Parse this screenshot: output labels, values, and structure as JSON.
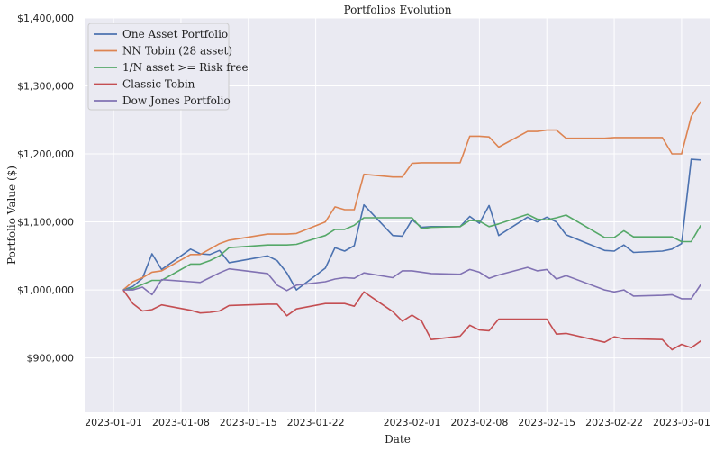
{
  "chart_data": {
    "type": "line",
    "title": "Portfolios Evolution",
    "xlabel": "Date",
    "ylabel": "Portfolio Value ($)",
    "ylim": [
      820000,
      1400000
    ],
    "xlim": [
      "2022-12-29",
      "2023-03-04"
    ],
    "x_ticks": [
      "2023-01-01",
      "2023-01-08",
      "2023-01-15",
      "2023-01-22",
      "2023-02-01",
      "2023-02-08",
      "2023-02-15",
      "2023-02-22",
      "2023-03-01"
    ],
    "y_ticks": [
      900000,
      1000000,
      1100000,
      1200000,
      1300000,
      1400000
    ],
    "y_tick_labels": [
      "$900,000",
      "$1,000,000",
      "$1,100,000",
      "$1,200,000",
      "$1,300,000",
      "$1,400,000"
    ],
    "grid": true,
    "legend_position": "top-left",
    "background": "#eaeaf2",
    "x": [
      "2023-01-02",
      "2023-01-03",
      "2023-01-04",
      "2023-01-05",
      "2023-01-06",
      "2023-01-09",
      "2023-01-10",
      "2023-01-11",
      "2023-01-12",
      "2023-01-13",
      "2023-01-17",
      "2023-01-18",
      "2023-01-19",
      "2023-01-20",
      "2023-01-23",
      "2023-01-24",
      "2023-01-25",
      "2023-01-26",
      "2023-01-27",
      "2023-01-30",
      "2023-01-31",
      "2023-02-01",
      "2023-02-02",
      "2023-02-03",
      "2023-02-06",
      "2023-02-07",
      "2023-02-08",
      "2023-02-09",
      "2023-02-10",
      "2023-02-13",
      "2023-02-14",
      "2023-02-15",
      "2023-02-16",
      "2023-02-17",
      "2023-02-21",
      "2023-02-22",
      "2023-02-23",
      "2023-02-24",
      "2023-02-27",
      "2023-02-28",
      "2023-03-01",
      "2023-03-02",
      "2023-03-03"
    ],
    "series": [
      {
        "name": "One Asset Portfolio",
        "color": "#4c72b0",
        "values": [
          1000000,
          1005000,
          1017000,
          1053000,
          1030000,
          1060000,
          1053000,
          1052000,
          1058000,
          1040000,
          1050000,
          1043000,
          1025000,
          1000000,
          1032000,
          1062000,
          1057000,
          1065000,
          1125000,
          1080000,
          1079000,
          1103000,
          1092000,
          1093000,
          1093000,
          1108000,
          1098000,
          1124000,
          1080000,
          1107000,
          1100000,
          1107000,
          1100000,
          1081000,
          1058000,
          1057000,
          1066000,
          1055000,
          1057000,
          1060000,
          1068000,
          1192000,
          1191000
        ]
      },
      {
        "name": "NN Tobin (28 asset)",
        "color": "#dd8452",
        "values": [
          1000000,
          1012000,
          1018000,
          1026000,
          1028000,
          1052000,
          1052000,
          1060000,
          1068000,
          1073000,
          1082000,
          1082000,
          1082000,
          1083000,
          1100000,
          1122000,
          1118000,
          1118000,
          1170000,
          1166000,
          1166000,
          1186000,
          1187000,
          1187000,
          1187000,
          1226000,
          1226000,
          1225000,
          1210000,
          1233000,
          1233000,
          1235000,
          1235000,
          1223000,
          1223000,
          1224000,
          1224000,
          1224000,
          1224000,
          1200000,
          1200000,
          1255000,
          1277000
        ]
      },
      {
        "name": "1/N asset >= Risk free",
        "color": "#55a868",
        "values": [
          1000000,
          1002000,
          1008000,
          1014000,
          1014000,
          1038000,
          1038000,
          1043000,
          1050000,
          1062000,
          1066000,
          1066000,
          1066000,
          1067000,
          1080000,
          1089000,
          1089000,
          1095000,
          1106000,
          1106000,
          1106000,
          1106000,
          1090000,
          1092000,
          1093000,
          1102000,
          1101000,
          1093000,
          1097000,
          1111000,
          1104000,
          1103000,
          1106000,
          1110000,
          1077000,
          1077000,
          1087000,
          1078000,
          1078000,
          1078000,
          1071000,
          1071000,
          1095000
        ]
      },
      {
        "name": "Classic Tobin",
        "color": "#c44e52",
        "values": [
          1000000,
          980000,
          969000,
          971000,
          978000,
          970000,
          966000,
          967000,
          969000,
          977000,
          979000,
          979000,
          962000,
          972000,
          980000,
          980000,
          980000,
          976000,
          997000,
          968000,
          954000,
          963000,
          954000,
          927000,
          932000,
          948000,
          941000,
          940000,
          957000,
          957000,
          957000,
          957000,
          935000,
          936000,
          923000,
          931000,
          928000,
          928000,
          927000,
          912000,
          920000,
          915000,
          925000
        ]
      },
      {
        "name": "Dow Jones Portfolio",
        "color": "#8172b3",
        "values": [
          1000000,
          1000000,
          1004000,
          993000,
          1015000,
          1012000,
          1011000,
          1018000,
          1025000,
          1031000,
          1024000,
          1007000,
          999000,
          1007000,
          1012000,
          1016000,
          1018000,
          1017000,
          1025000,
          1018000,
          1028000,
          1028000,
          1026000,
          1024000,
          1023000,
          1030000,
          1026000,
          1017000,
          1022000,
          1033000,
          1028000,
          1030000,
          1016000,
          1021000,
          1000000,
          997000,
          1000000,
          991000,
          992000,
          993000,
          987000,
          987000,
          1008000
        ]
      }
    ]
  }
}
